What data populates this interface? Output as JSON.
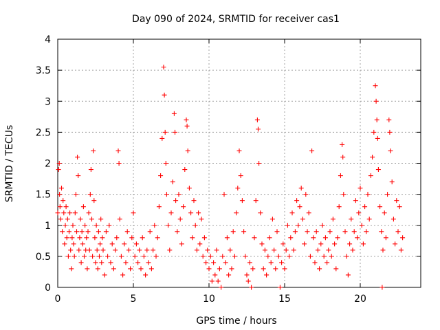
{
  "chart_data": {
    "type": "scatter",
    "title": "Day 090 of 2024, SRMTID for receiver cas1",
    "xlabel": "GPS time / hours",
    "ylabel": "SRMTID / TECUs",
    "xlim": [
      0,
      24
    ],
    "ylim": [
      0,
      4
    ],
    "xticks": [
      0,
      5,
      10,
      15,
      20
    ],
    "yticks": [
      0,
      0.5,
      1,
      1.5,
      2,
      2.5,
      3,
      3.5,
      4
    ],
    "xtick_labels": [
      "0",
      "5",
      "10",
      "15",
      "20"
    ],
    "ytick_labels": [
      "0",
      "0.5",
      "1",
      "1.5",
      "2",
      "2.5",
      "3",
      "3.5",
      "4"
    ],
    "grid": true,
    "marker": "+",
    "series": [
      {
        "name": "SRMTID cas1",
        "color": "#ff0000",
        "points": [
          [
            0.0,
            1.2
          ],
          [
            0.05,
            1.9
          ],
          [
            0.1,
            2.0
          ],
          [
            0.12,
            1.5
          ],
          [
            0.15,
            1.3
          ],
          [
            0.2,
            1.1
          ],
          [
            0.25,
            1.6
          ],
          [
            0.3,
            0.9
          ],
          [
            0.35,
            1.4
          ],
          [
            0.4,
            1.2
          ],
          [
            0.45,
            0.7
          ],
          [
            0.5,
            1.0
          ],
          [
            0.55,
            1.3
          ],
          [
            0.6,
            0.8
          ],
          [
            0.65,
            1.1
          ],
          [
            0.7,
            0.5
          ],
          [
            0.75,
            0.9
          ],
          [
            0.8,
            1.2
          ],
          [
            0.85,
            0.6
          ],
          [
            0.9,
            0.3
          ],
          [
            0.95,
            0.8
          ],
          [
            1.0,
            1.0
          ],
          [
            1.05,
            0.7
          ],
          [
            1.1,
            0.5
          ],
          [
            1.15,
            1.2
          ],
          [
            1.2,
            1.5
          ],
          [
            1.25,
            0.9
          ],
          [
            1.3,
            2.1
          ],
          [
            1.35,
            1.8
          ],
          [
            1.4,
            0.6
          ],
          [
            1.45,
            0.8
          ],
          [
            1.5,
            1.1
          ],
          [
            1.55,
            0.4
          ],
          [
            1.6,
            0.9
          ],
          [
            1.65,
            0.7
          ],
          [
            1.7,
            1.3
          ],
          [
            1.75,
            0.5
          ],
          [
            1.8,
            1.0
          ],
          [
            1.85,
            0.6
          ],
          [
            1.9,
            0.8
          ],
          [
            1.95,
            0.3
          ],
          [
            2.0,
            0.9
          ],
          [
            2.05,
            1.2
          ],
          [
            2.1,
            0.6
          ],
          [
            2.15,
            1.5
          ],
          [
            2.2,
            1.9
          ],
          [
            2.25,
            1.1
          ],
          [
            2.3,
            0.5
          ],
          [
            2.35,
            2.2
          ],
          [
            2.4,
            1.4
          ],
          [
            2.45,
            0.8
          ],
          [
            2.5,
            0.4
          ],
          [
            2.55,
            1.0
          ],
          [
            2.6,
            0.6
          ],
          [
            2.65,
            0.3
          ],
          [
            2.7,
            0.9
          ],
          [
            2.75,
            0.5
          ],
          [
            2.8,
            0.7
          ],
          [
            2.85,
            1.1
          ],
          [
            2.9,
            0.4
          ],
          [
            2.95,
            0.8
          ],
          [
            3.0,
            0.6
          ],
          [
            3.1,
            0.2
          ],
          [
            3.2,
            0.9
          ],
          [
            3.3,
            0.5
          ],
          [
            3.4,
            1.0
          ],
          [
            3.5,
            0.4
          ],
          [
            3.6,
            0.7
          ],
          [
            3.7,
            0.3
          ],
          [
            3.8,
            0.6
          ],
          [
            3.9,
            0.8
          ],
          [
            4.0,
            2.2
          ],
          [
            4.05,
            2.0
          ],
          [
            4.1,
            1.1
          ],
          [
            4.2,
            0.5
          ],
          [
            4.3,
            0.2
          ],
          [
            4.4,
            0.7
          ],
          [
            4.5,
            0.4
          ],
          [
            4.6,
            0.9
          ],
          [
            4.7,
            0.6
          ],
          [
            4.8,
            0.3
          ],
          [
            4.9,
            0.8
          ],
          [
            5.0,
            1.2
          ],
          [
            5.1,
            0.5
          ],
          [
            5.2,
            0.7
          ],
          [
            5.3,
            0.4
          ],
          [
            5.4,
            0.6
          ],
          [
            5.5,
            0.3
          ],
          [
            5.6,
            0.8
          ],
          [
            5.7,
            0.5
          ],
          [
            5.8,
            0.2
          ],
          [
            5.9,
            0.6
          ],
          [
            6.0,
            0.4
          ],
          [
            6.1,
            0.9
          ],
          [
            6.2,
            0.3
          ],
          [
            6.3,
            0.6
          ],
          [
            6.4,
            1.0
          ],
          [
            6.5,
            0.5
          ],
          [
            6.6,
            0.8
          ],
          [
            6.7,
            1.3
          ],
          [
            6.8,
            1.8
          ],
          [
            6.9,
            2.4
          ],
          [
            7.0,
            3.55
          ],
          [
            7.05,
            3.1
          ],
          [
            7.1,
            2.5
          ],
          [
            7.15,
            2.0
          ],
          [
            7.2,
            1.5
          ],
          [
            7.3,
            1.0
          ],
          [
            7.4,
            0.6
          ],
          [
            7.5,
            1.2
          ],
          [
            7.6,
            1.7
          ],
          [
            7.7,
            2.8
          ],
          [
            7.75,
            2.5
          ],
          [
            7.8,
            1.4
          ],
          [
            7.9,
            0.9
          ],
          [
            8.0,
            1.5
          ],
          [
            8.1,
            1.1
          ],
          [
            8.2,
            0.7
          ],
          [
            8.3,
            1.3
          ],
          [
            8.4,
            1.9
          ],
          [
            8.5,
            2.7
          ],
          [
            8.55,
            2.6
          ],
          [
            8.6,
            2.2
          ],
          [
            8.7,
            1.6
          ],
          [
            8.8,
            1.2
          ],
          [
            8.9,
            0.8
          ],
          [
            9.0,
            1.4
          ],
          [
            9.1,
            1.0
          ],
          [
            9.2,
            0.6
          ],
          [
            9.3,
            1.2
          ],
          [
            9.4,
            0.7
          ],
          [
            9.5,
            1.1
          ],
          [
            9.6,
            0.5
          ],
          [
            9.7,
            0.8
          ],
          [
            9.8,
            0.4
          ],
          [
            9.9,
            0.6
          ],
          [
            10.0,
            0.3
          ],
          [
            10.1,
            0.5
          ],
          [
            10.2,
            0.1
          ],
          [
            10.3,
            0.4
          ],
          [
            10.4,
            0.2
          ],
          [
            10.5,
            0.6
          ],
          [
            10.6,
            0.1
          ],
          [
            10.7,
            0.3
          ],
          [
            10.8,
            0.0
          ],
          [
            10.9,
            0.5
          ],
          [
            11.0,
            1.5
          ],
          [
            11.1,
            0.4
          ],
          [
            11.2,
            0.8
          ],
          [
            11.3,
            0.2
          ],
          [
            11.4,
            0.6
          ],
          [
            11.5,
            0.3
          ],
          [
            11.6,
            0.9
          ],
          [
            11.7,
            0.5
          ],
          [
            11.8,
            1.2
          ],
          [
            11.9,
            1.6
          ],
          [
            12.0,
            2.2
          ],
          [
            12.1,
            1.8
          ],
          [
            12.2,
            1.4
          ],
          [
            12.3,
            0.9
          ],
          [
            12.4,
            0.5
          ],
          [
            12.5,
            0.2
          ],
          [
            12.6,
            0.1
          ],
          [
            12.7,
            0.4
          ],
          [
            12.8,
            0.0
          ],
          [
            12.9,
            0.3
          ],
          [
            13.0,
            0.8
          ],
          [
            13.1,
            1.4
          ],
          [
            13.2,
            2.7
          ],
          [
            13.25,
            2.55
          ],
          [
            13.3,
            2.0
          ],
          [
            13.4,
            1.2
          ],
          [
            13.5,
            0.7
          ],
          [
            13.6,
            0.3
          ],
          [
            13.7,
            0.6
          ],
          [
            13.8,
            0.2
          ],
          [
            13.9,
            0.5
          ],
          [
            14.0,
            0.8
          ],
          [
            14.1,
            0.4
          ],
          [
            14.2,
            1.1
          ],
          [
            14.3,
            0.6
          ],
          [
            14.4,
            0.3
          ],
          [
            14.5,
            0.9
          ],
          [
            14.6,
            0.5
          ],
          [
            14.7,
            0.0
          ],
          [
            14.8,
            0.4
          ],
          [
            14.9,
            0.7
          ],
          [
            15.0,
            0.3
          ],
          [
            15.1,
            0.6
          ],
          [
            15.2,
            1.0
          ],
          [
            15.3,
            0.5
          ],
          [
            15.4,
            0.8
          ],
          [
            15.5,
            1.2
          ],
          [
            15.6,
            0.6
          ],
          [
            15.7,
            0.9
          ],
          [
            15.8,
            1.4
          ],
          [
            15.9,
            1.0
          ],
          [
            16.0,
            1.3
          ],
          [
            16.1,
            1.6
          ],
          [
            16.2,
            1.1
          ],
          [
            16.3,
            0.7
          ],
          [
            16.4,
            1.5
          ],
          [
            16.5,
            0.9
          ],
          [
            16.6,
            1.2
          ],
          [
            16.7,
            0.5
          ],
          [
            16.8,
            2.2
          ],
          [
            16.9,
            0.8
          ],
          [
            17.0,
            0.4
          ],
          [
            17.1,
            0.9
          ],
          [
            17.2,
            0.6
          ],
          [
            17.3,
            0.3
          ],
          [
            17.4,
            0.7
          ],
          [
            17.5,
            1.0
          ],
          [
            17.6,
            0.5
          ],
          [
            17.7,
            0.8
          ],
          [
            17.8,
            0.4
          ],
          [
            17.9,
            0.6
          ],
          [
            18.0,
            0.9
          ],
          [
            18.1,
            0.5
          ],
          [
            18.2,
            1.1
          ],
          [
            18.3,
            0.7
          ],
          [
            18.4,
            0.3
          ],
          [
            18.5,
            0.8
          ],
          [
            18.6,
            1.3
          ],
          [
            18.7,
            1.8
          ],
          [
            18.8,
            2.3
          ],
          [
            18.85,
            2.1
          ],
          [
            18.9,
            1.5
          ],
          [
            19.0,
            0.9
          ],
          [
            19.1,
            0.5
          ],
          [
            19.2,
            0.2
          ],
          [
            19.3,
            0.7
          ],
          [
            19.4,
            1.1
          ],
          [
            19.5,
            0.6
          ],
          [
            19.6,
            0.9
          ],
          [
            19.7,
            1.4
          ],
          [
            19.8,
            0.8
          ],
          [
            19.9,
            1.2
          ],
          [
            20.0,
            1.6
          ],
          [
            20.1,
            1.0
          ],
          [
            20.2,
            0.7
          ],
          [
            20.3,
            1.3
          ],
          [
            20.4,
            0.9
          ],
          [
            20.5,
            1.5
          ],
          [
            20.6,
            1.1
          ],
          [
            20.7,
            1.8
          ],
          [
            20.8,
            2.1
          ],
          [
            20.9,
            2.5
          ],
          [
            21.0,
            3.25
          ],
          [
            21.05,
            3.0
          ],
          [
            21.1,
            2.7
          ],
          [
            21.15,
            2.4
          ],
          [
            21.2,
            1.9
          ],
          [
            21.3,
            1.3
          ],
          [
            21.4,
            0.9
          ],
          [
            21.45,
            0.0
          ],
          [
            21.5,
            0.6
          ],
          [
            21.6,
            1.2
          ],
          [
            21.7,
            0.8
          ],
          [
            21.8,
            1.5
          ],
          [
            21.9,
            2.7
          ],
          [
            21.95,
            2.5
          ],
          [
            22.0,
            2.2
          ],
          [
            22.1,
            1.7
          ],
          [
            22.2,
            1.1
          ],
          [
            22.3,
            0.7
          ],
          [
            22.4,
            1.4
          ],
          [
            22.5,
            0.9
          ],
          [
            22.6,
            1.3
          ],
          [
            22.7,
            0.6
          ],
          [
            22.8,
            0.8
          ]
        ]
      }
    ]
  }
}
